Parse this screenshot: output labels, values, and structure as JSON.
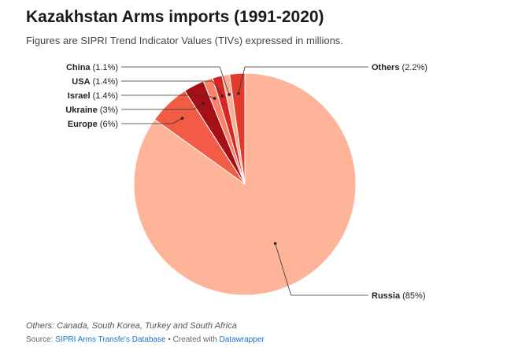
{
  "header": {
    "title": "Kazakhstan Arms imports (1991-2020)",
    "subtitle": "Figures are SIPRI Trend Indicator Values (TIVs) expressed in millions."
  },
  "chart_data": {
    "type": "pie",
    "slices": [
      {
        "label": "Russia",
        "value_label": "(85%)",
        "value": 85,
        "color": "#fdb499"
      },
      {
        "label": "Europe",
        "value_label": "(6%)",
        "value": 6,
        "color": "#f25c47"
      },
      {
        "label": "Ukraine",
        "value_label": "(3%)",
        "value": 3,
        "color": "#a50f15"
      },
      {
        "label": "Israel",
        "value_label": "(1.4%)",
        "value": 1.4,
        "color": "#fa8068"
      },
      {
        "label": "USA",
        "value_label": "(1.4%)",
        "value": 1.4,
        "color": "#d92524"
      },
      {
        "label": "China",
        "value_label": "(1.1%)",
        "value": 1.1,
        "color": "#fcae91"
      },
      {
        "label": "Others",
        "value_label": "(2.2%)",
        "value": 2.2,
        "color": "#e23b2e"
      }
    ]
  },
  "footer": {
    "notes": "Others: Canada, South Korea, Turkey and South Africa",
    "source_prefix": "Source: ",
    "source_link": "SIPRI Arms Transfe's Database",
    "separator": " • Created with ",
    "tool_link": "Datawrapper"
  }
}
